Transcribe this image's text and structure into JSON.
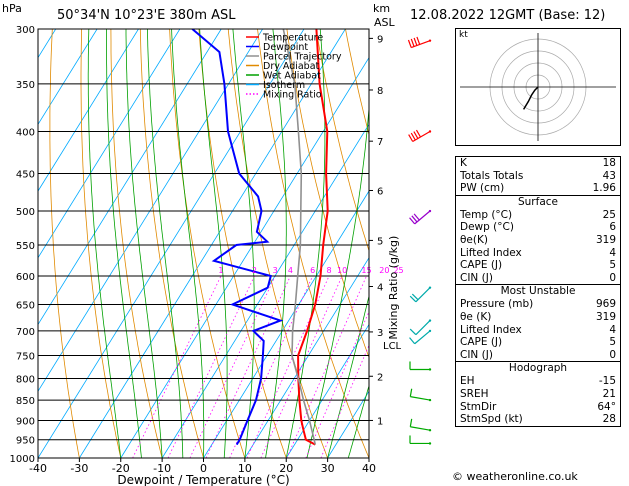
{
  "header": {
    "hpa_label": "hPa",
    "location": "50°34'N  10°23'E  380m  ASL",
    "km_label": "km",
    "asl_label": "ASL",
    "datetime": "12.08.2022  12GMT  (Base: 12)"
  },
  "chart_data": {
    "type": "line",
    "xlabel": "Dewpoint / Temperature (°C)",
    "ylabel": "Mixing Ratio (g/kg)",
    "xlim": [
      -40,
      40
    ],
    "ylim": [
      1000,
      300
    ],
    "y_scale": "log",
    "x_ticks": [
      "-40",
      "-30",
      "-20",
      "-10",
      "0",
      "10",
      "20",
      "30",
      "40"
    ],
    "pressure_levels": [
      "300",
      "350",
      "400",
      "450",
      "500",
      "550",
      "600",
      "650",
      "700",
      "750",
      "800",
      "850",
      "900",
      "950",
      "1000"
    ],
    "km_ticks": [
      {
        "label": "9",
        "p": 308
      },
      {
        "label": "8",
        "p": 356
      },
      {
        "label": "7",
        "p": 411
      },
      {
        "label": "6",
        "p": 472
      },
      {
        "label": "5",
        "p": 543
      },
      {
        "label": "4",
        "p": 618
      },
      {
        "label": "3",
        "p": 702
      },
      {
        "label": "2",
        "p": 795
      },
      {
        "label": "1",
        "p": 900
      }
    ],
    "lcl": {
      "label": "LCL",
      "p": 728
    },
    "mixing_ratio_labels": [
      "1",
      "2",
      "3",
      "4",
      "6",
      "8",
      "10",
      "15",
      "20",
      "25"
    ],
    "legend": [
      "Temperature",
      "Dewpoint",
      "Parcel Trajectory",
      "Dry Adiabat",
      "Wet Adiabat",
      "Isotherm",
      "Mixing Ratio"
    ],
    "series": [
      {
        "name": "Temperature",
        "color": "#ff0000",
        "points": [
          [
            963,
            25
          ],
          [
            950,
            22
          ],
          [
            925,
            20
          ],
          [
            900,
            18
          ],
          [
            850,
            14.5
          ],
          [
            800,
            11
          ],
          [
            750,
            7.5
          ],
          [
            700,
            6
          ],
          [
            650,
            4
          ],
          [
            600,
            1
          ],
          [
            550,
            -3
          ],
          [
            500,
            -7
          ],
          [
            450,
            -13
          ],
          [
            400,
            -19
          ],
          [
            350,
            -28
          ],
          [
            300,
            -37
          ]
        ]
      },
      {
        "name": "Dewpoint",
        "color": "#0000ff",
        "points": [
          [
            963,
            6
          ],
          [
            950,
            6
          ],
          [
            900,
            5
          ],
          [
            850,
            4
          ],
          [
            800,
            2
          ],
          [
            750,
            -1
          ],
          [
            720,
            -3
          ],
          [
            700,
            -7
          ],
          [
            680,
            -2
          ],
          [
            650,
            -16
          ],
          [
            620,
            -10
          ],
          [
            600,
            -11
          ],
          [
            575,
            -27
          ],
          [
            550,
            -24
          ],
          [
            545,
            -17
          ],
          [
            530,
            -21
          ],
          [
            500,
            -23
          ],
          [
            480,
            -26
          ],
          [
            450,
            -34
          ],
          [
            400,
            -43
          ],
          [
            350,
            -51
          ],
          [
            320,
            -57
          ],
          [
            300,
            -67
          ]
        ]
      },
      {
        "name": "Parcel Trajectory",
        "color": "#909090",
        "points": [
          [
            963,
            25
          ],
          [
            900,
            20
          ],
          [
            850,
            15.5
          ],
          [
            800,
            11
          ],
          [
            750,
            6
          ],
          [
            728,
            4.5
          ],
          [
            700,
            2.5
          ],
          [
            650,
            -0.8
          ],
          [
            600,
            -4.5
          ],
          [
            550,
            -8.5
          ],
          [
            500,
            -13.5
          ],
          [
            450,
            -19
          ],
          [
            400,
            -26
          ],
          [
            350,
            -34
          ],
          [
            300,
            -45
          ]
        ]
      }
    ]
  },
  "wind_barbs": [
    {
      "p": 310,
      "dir": 250,
      "spd": 40,
      "color": "#ff0000"
    },
    {
      "p": 400,
      "dir": 240,
      "spd": 35,
      "color": "#ff0000"
    },
    {
      "p": 500,
      "dir": 230,
      "spd": 25,
      "color": "#9900cc"
    },
    {
      "p": 620,
      "dir": 225,
      "spd": 15,
      "color": "#00aaaa"
    },
    {
      "p": 680,
      "dir": 225,
      "spd": 10,
      "color": "#00aaaa"
    },
    {
      "p": 700,
      "dir": 230,
      "spd": 10,
      "color": "#00aaaa"
    },
    {
      "p": 780,
      "dir": 270,
      "spd": 10,
      "color": "#00aa00"
    },
    {
      "p": 850,
      "dir": 280,
      "spd": 10,
      "color": "#00aa00"
    },
    {
      "p": 925,
      "dir": 280,
      "spd": 10,
      "color": "#00aa00"
    },
    {
      "p": 960,
      "dir": 270,
      "spd": 5,
      "color": "#00aa00"
    }
  ],
  "hodograph": {
    "label": "kt",
    "points": [
      [
        0,
        0
      ],
      [
        -2,
        -2
      ],
      [
        -4,
        -5
      ],
      [
        -6,
        -9
      ],
      [
        -9,
        -14
      ]
    ]
  },
  "indices": {
    "rows": [
      {
        "label": "K",
        "value": "18"
      },
      {
        "label": "Totals Totals",
        "value": "43"
      },
      {
        "label": "PW (cm)",
        "value": "1.96"
      }
    ]
  },
  "surface": {
    "title": "Surface",
    "rows": [
      {
        "label": "Temp (°C)",
        "value": "25"
      },
      {
        "label": "Dewp (°C)",
        "value": "6"
      },
      {
        "label": "θe(K)",
        "value": "319"
      },
      {
        "label": "Lifted Index",
        "value": "4"
      },
      {
        "label": "CAPE (J)",
        "value": "5"
      },
      {
        "label": "CIN (J)",
        "value": "0"
      }
    ]
  },
  "most_unstable": {
    "title": "Most Unstable",
    "rows": [
      {
        "label": "Pressure (mb)",
        "value": "969"
      },
      {
        "label": "θe (K)",
        "value": "319"
      },
      {
        "label": "Lifted Index",
        "value": "4"
      },
      {
        "label": "CAPE (J)",
        "value": "5"
      },
      {
        "label": "CIN (J)",
        "value": "0"
      }
    ]
  },
  "hodograph_table": {
    "title": "Hodograph",
    "rows": [
      {
        "label": "EH",
        "value": "-15"
      },
      {
        "label": "SREH",
        "value": "21"
      },
      {
        "label": "StmDir",
        "value": "64°"
      },
      {
        "label": "StmSpd (kt)",
        "value": "28"
      }
    ]
  },
  "copyright": "© weatheronline.co.uk"
}
